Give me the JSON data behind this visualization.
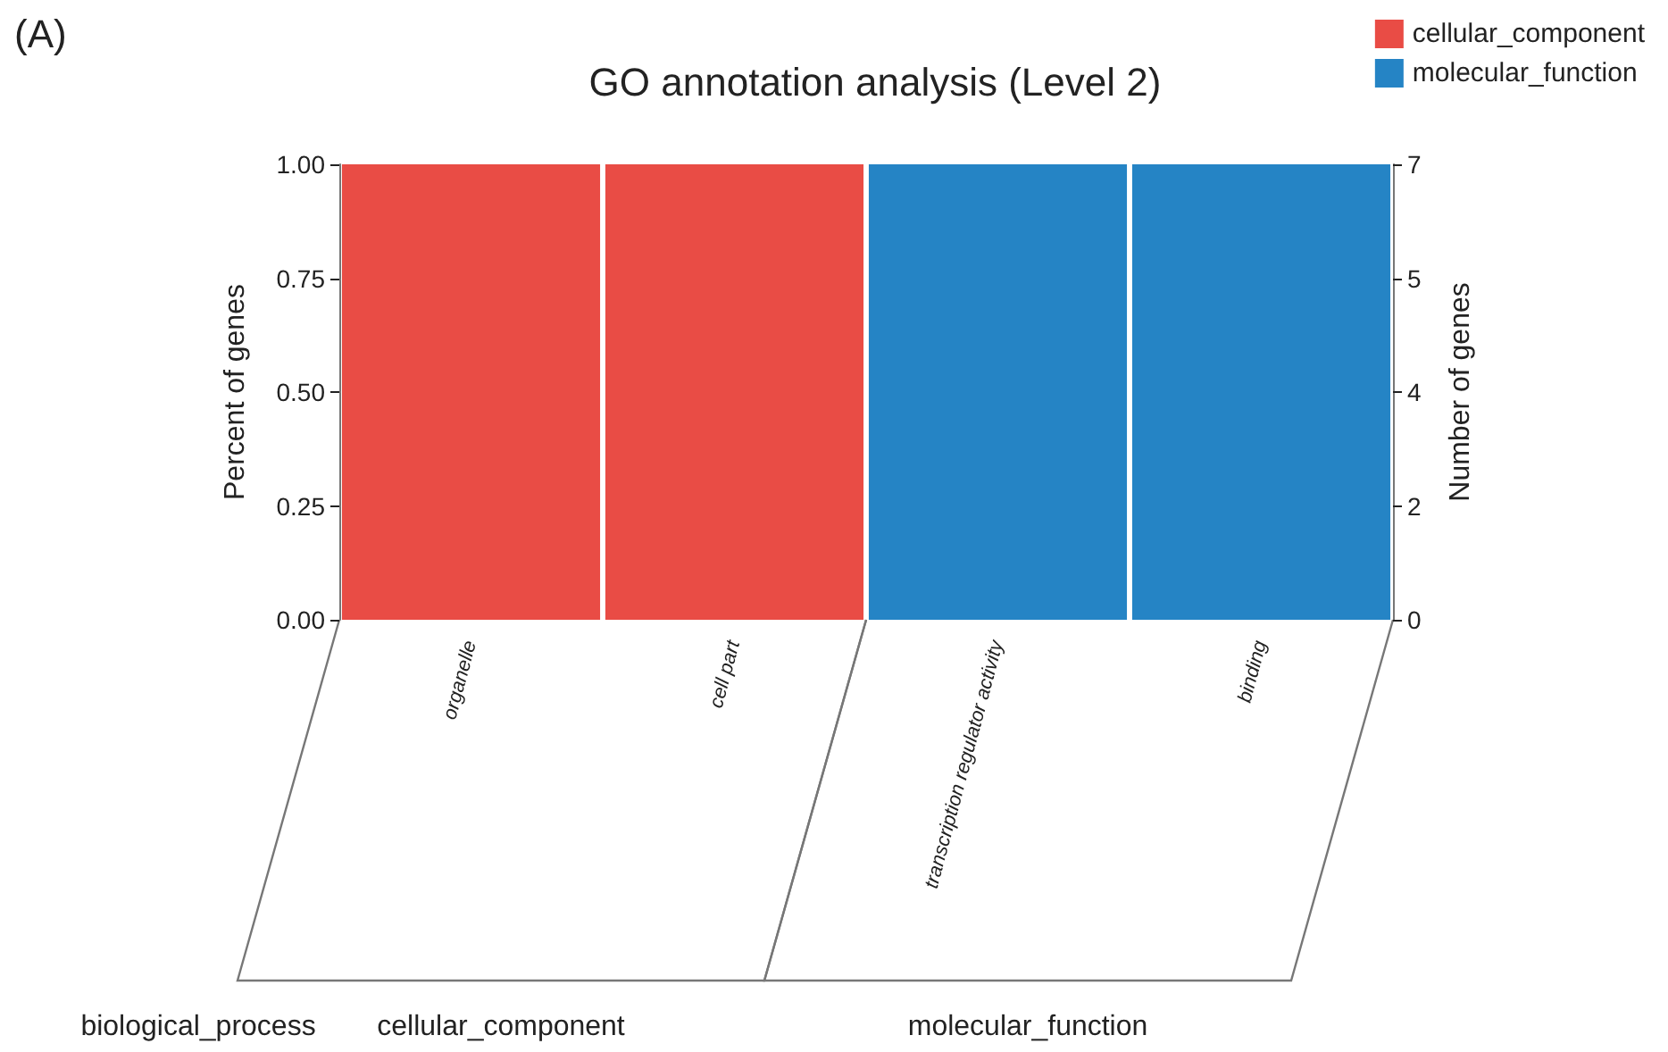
{
  "chart_data": {
    "type": "bar",
    "title": "GO annotation analysis (Level 2)",
    "ylabel": "Percent of genes",
    "y2label": "Number of genes",
    "categories": [
      "organelle",
      "cell part",
      "transcription regulator activity",
      "binding"
    ],
    "series": [
      {
        "name": "cellular_component",
        "color": "#e94c45",
        "values": [
          1,
          1,
          null,
          null
        ]
      },
      {
        "name": "molecular_function",
        "color": "#2584c5",
        "values": [
          null,
          null,
          1,
          1
        ]
      }
    ],
    "stacked": true,
    "ylim": [
      0,
      1
    ],
    "yticks": [
      {
        "value": 0,
        "label": "0.00"
      },
      {
        "value": 0.25,
        "label": "0.25"
      },
      {
        "value": 0.5,
        "label": "0.50"
      },
      {
        "value": 0.75,
        "label": "0.75"
      },
      {
        "value": 1,
        "label": "1.00"
      }
    ],
    "y2lim": [
      0,
      7
    ],
    "y2ticks": [
      0,
      {
        "value": 1.75,
        "label": "2"
      },
      {
        "value": 3.5,
        "label": "4"
      },
      {
        "value": 5.25,
        "label": "5"
      },
      7
    ],
    "annotations": [
      "(A)",
      "biological_process",
      "cellular_component",
      "molecular_function"
    ],
    "grid": false,
    "legend": "top right"
  }
}
